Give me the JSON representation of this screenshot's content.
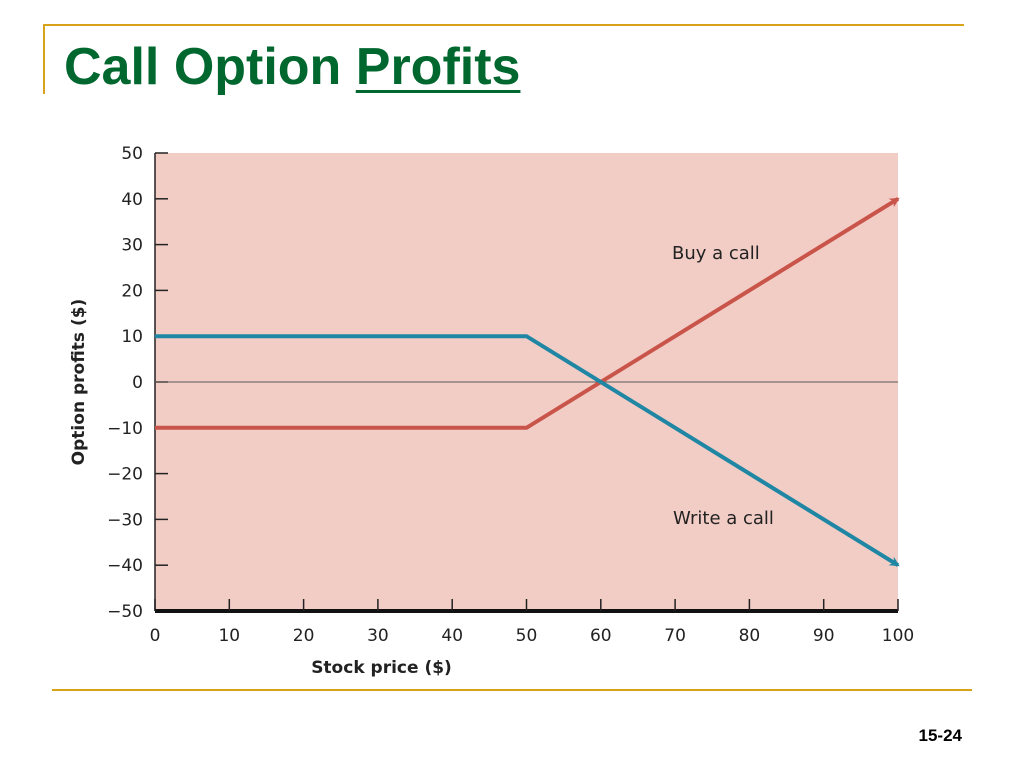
{
  "slide": {
    "title_main": "Call Option ",
    "title_underlined": "Profits",
    "page_number": "15-24"
  },
  "colors": {
    "title": "#00682f",
    "rule": "#d9a21b",
    "plot_background": "#f2cdc6",
    "buy_call": "#c9544a",
    "write_call": "#1f86a4"
  },
  "chart_data": {
    "type": "line",
    "xlabel": "Stock price ($)",
    "ylabel": "Option profits ($)",
    "xlim": [
      0,
      100
    ],
    "ylim": [
      -50,
      50
    ],
    "x_ticks": [
      0,
      10,
      20,
      30,
      40,
      50,
      60,
      70,
      80,
      90,
      100
    ],
    "y_ticks": [
      50,
      40,
      30,
      20,
      10,
      0,
      -10,
      -20,
      -30,
      -40,
      -50
    ],
    "x_tick_labels": [
      "0",
      "10",
      "20",
      "30",
      "40",
      "50",
      "60",
      "70",
      "80",
      "90",
      "100"
    ],
    "y_tick_labels": [
      "50",
      "40",
      "30",
      "20",
      "10",
      "0",
      "−10",
      "−20",
      "−30",
      "−40",
      "−50"
    ],
    "grid": false,
    "series": [
      {
        "name": "Buy a call",
        "color": "#c9544a",
        "x": [
          0,
          50,
          100
        ],
        "y": [
          -10,
          -10,
          40
        ]
      },
      {
        "name": "Write a call",
        "color": "#1f86a4",
        "x": [
          0,
          50,
          100
        ],
        "y": [
          10,
          10,
          -40
        ]
      }
    ]
  }
}
